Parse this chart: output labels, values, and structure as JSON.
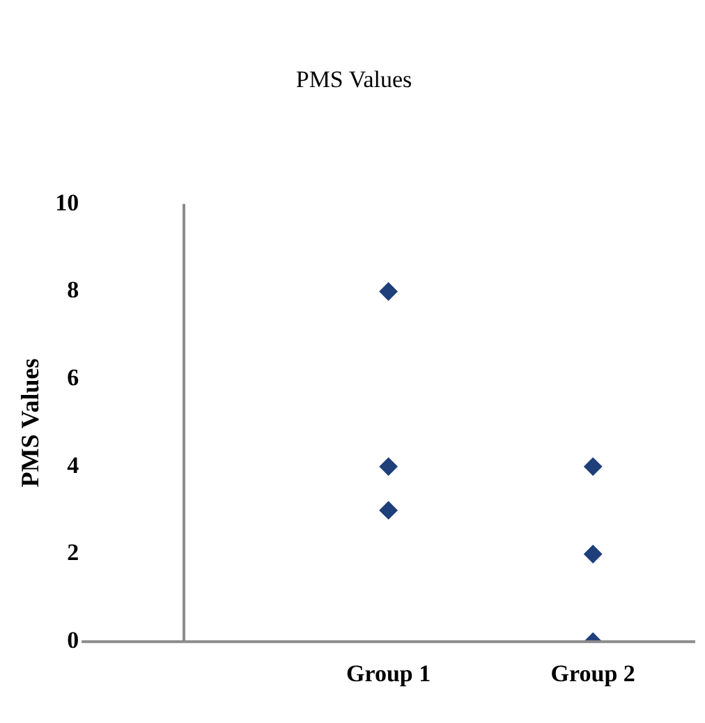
{
  "chart_data": {
    "type": "scatter",
    "title": "PMS Values",
    "ylabel": "PMS Values",
    "categories": [
      "Group 1",
      "Group 2"
    ],
    "series": [
      {
        "color": "#1f3f7a",
        "x": [
          "Group 1",
          "Group 1",
          "Group 1",
          "Group 2",
          "Group 2",
          "Group 2"
        ],
        "values": [
          8,
          4,
          3,
          4,
          2,
          0
        ]
      }
    ],
    "ylim": [
      0,
      10
    ],
    "yticks": [
      0,
      2,
      4,
      6,
      8,
      10
    ],
    "marker": "diamond",
    "grid": false,
    "legend": false
  }
}
